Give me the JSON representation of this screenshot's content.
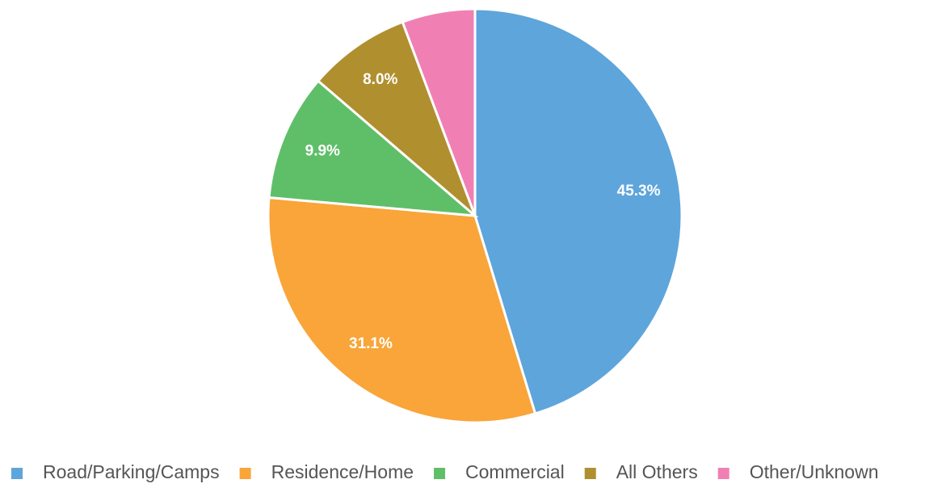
{
  "chart_data": {
    "type": "pie",
    "categories": [
      "Road/Parking/Camps",
      "Residence/Home",
      "Commercial",
      "All Others",
      "Other/Unknown"
    ],
    "values": [
      45.3,
      31.1,
      9.9,
      8.0,
      5.7
    ],
    "value_labels": [
      "45.3%",
      "31.1%",
      "9.9%",
      "8.0%",
      null
    ],
    "colors": [
      "#5ea5db",
      "#f9a53a",
      "#5fbf69",
      "#b08f2f",
      "#f080b4"
    ],
    "legend": "bottom"
  }
}
